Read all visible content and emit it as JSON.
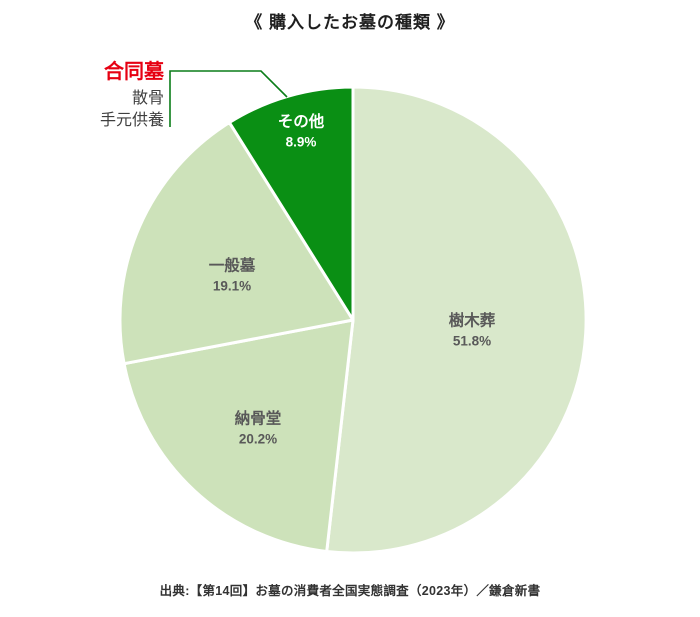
{
  "title": "《 購入したお墓の種類 》",
  "source": "出典:【第14回】お墓の消費者全国実態調査（2023年）／鎌倉新書",
  "annotation": {
    "points_to": "その他",
    "line_color": "#0a7d18",
    "items": [
      {
        "label": "合同墓",
        "color": "#e60012",
        "emphasis": true
      },
      {
        "label": "散骨",
        "color": "#3f3f3f",
        "emphasis": false
      },
      {
        "label": "手元供養",
        "color": "#3f3f3f",
        "emphasis": false
      }
    ]
  },
  "chart_data": {
    "type": "pie",
    "title": "《 購入したお墓の種類 》",
    "start_angle": "top",
    "direction": "clockwise",
    "legend_position": "none",
    "total": 100.0,
    "slices": [
      {
        "id": "jumokuso",
        "label": "樹木葬",
        "value": 51.8,
        "pct": "51.8%",
        "color": "#d9e8cb",
        "text_color": "#595959"
      },
      {
        "id": "nokotsudo",
        "label": "納骨堂",
        "value": 20.2,
        "pct": "20.2%",
        "color": "#cde2ba",
        "text_color": "#595959"
      },
      {
        "id": "ippanbo",
        "label": "一般墓",
        "value": 19.1,
        "pct": "19.1%",
        "color": "#cde2ba",
        "text_color": "#595959"
      },
      {
        "id": "sonota",
        "label": "その他",
        "value": 8.9,
        "pct": "8.9%",
        "color": "#0a8f14",
        "text_color": "#ffffff"
      }
    ]
  }
}
